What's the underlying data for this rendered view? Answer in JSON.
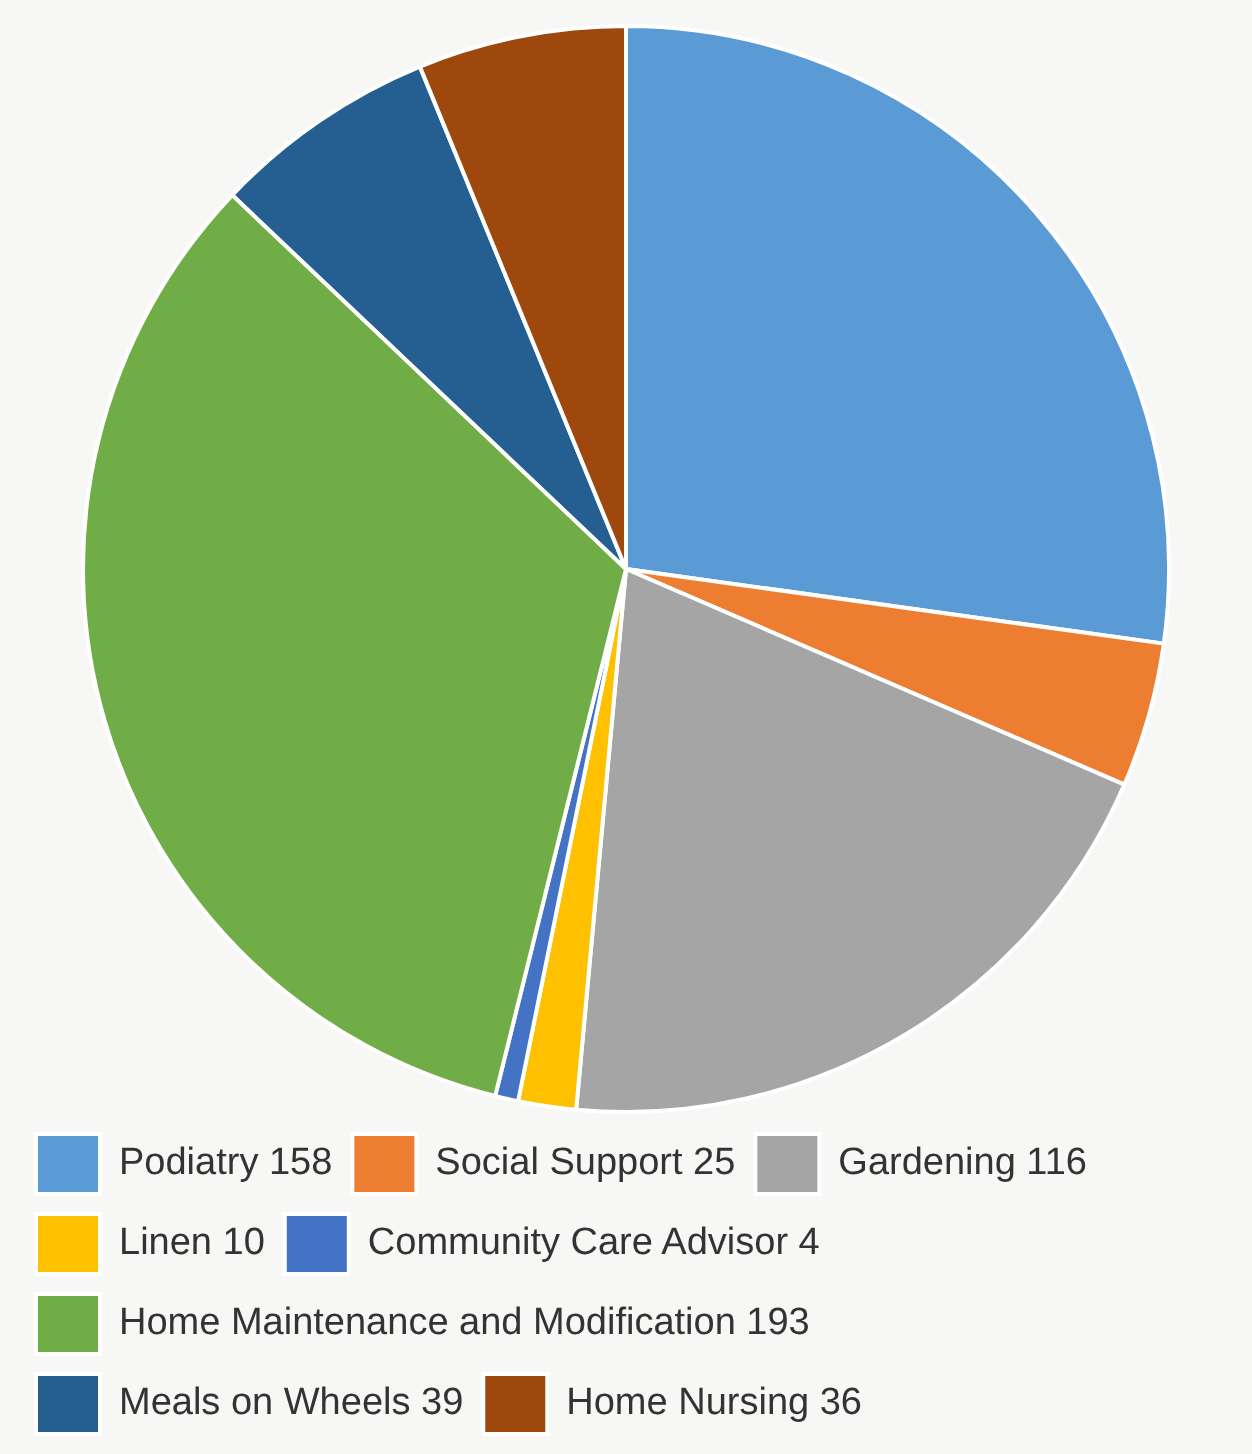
{
  "chart_data": {
    "type": "pie",
    "categories": [
      "Podiatry 158",
      "Social Support 25",
      "Gardening 116",
      "Linen 10",
      "Community Care Advisor 4",
      "Home Maintenance and Modification 193",
      "Meals on Wheels 39",
      "Home Nursing 36"
    ],
    "values": [
      158,
      25,
      116,
      10,
      4,
      193,
      39,
      36
    ],
    "colors": [
      "#5b9bd5",
      "#ed7d31",
      "#a5a5a5",
      "#ffc000",
      "#4472c4",
      "#70ad47",
      "#255e91",
      "#9e480e"
    ],
    "legend": "bottom"
  }
}
